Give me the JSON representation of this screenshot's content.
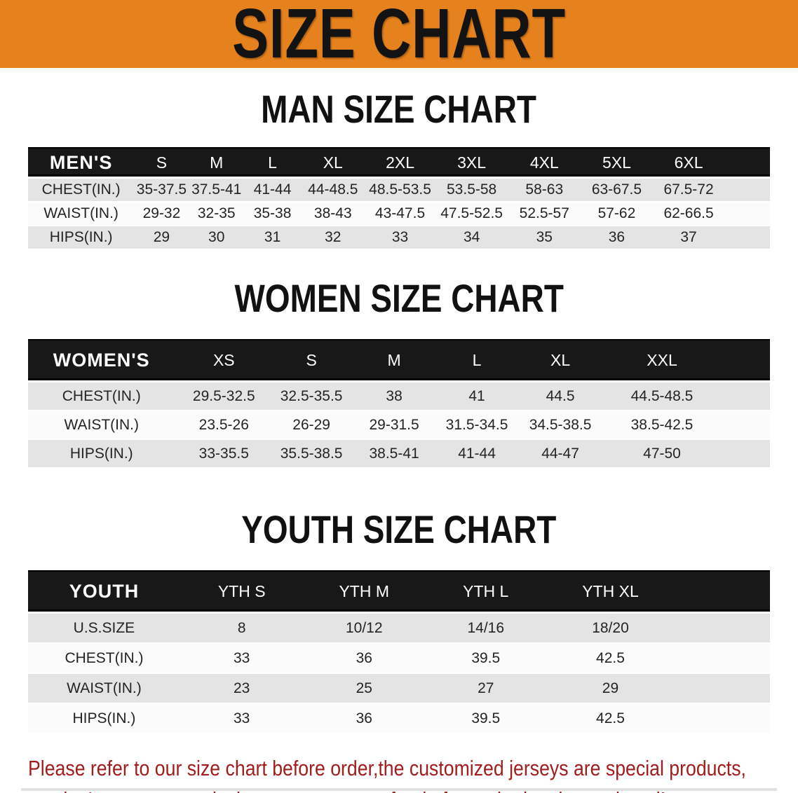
{
  "banner": {
    "title": "SIZE CHART",
    "bg_color": "#E5821E",
    "text_color": "#131313"
  },
  "table_colors": {
    "header_bg": "#181818",
    "header_text": "#FFFFFF",
    "row_alt_bg": "#E4E4E4",
    "row_bg": "#FBFBFB"
  },
  "sections": [
    {
      "heading": "MAN SIZE CHART",
      "group_label": "MEN'S",
      "columns": [
        "S",
        "M",
        "L",
        "XL",
        "2XL",
        "3XL",
        "4XL",
        "5XL",
        "6XL"
      ],
      "rows": [
        {
          "label": "CHEST(IN.)",
          "values": [
            "35-37.5",
            "37.5-41",
            "41-44",
            "44-48.5",
            "48.5-53.5",
            "53.5-58",
            "58-63",
            "63-67.5",
            "67.5-72"
          ]
        },
        {
          "label": "WAIST(IN.)",
          "values": [
            "29-32",
            "32-35",
            "35-38",
            "38-43",
            "43-47.5",
            "47.5-52.5",
            "52.5-57",
            "57-62",
            "62-66.5"
          ]
        },
        {
          "label": "HIPS(IN.)",
          "values": [
            "29",
            "30",
            "31",
            "32",
            "33",
            "34",
            "35",
            "36",
            "37"
          ]
        }
      ]
    },
    {
      "heading": "WOMEN SIZE CHART",
      "group_label": "WOMEN'S",
      "columns": [
        "XS",
        "S",
        "M",
        "L",
        "XL",
        "XXL"
      ],
      "rows": [
        {
          "label": "CHEST(IN.)",
          "values": [
            "29.5-32.5",
            "32.5-35.5",
            "38",
            "41",
            "44.5",
            "44.5-48.5"
          ]
        },
        {
          "label": "WAIST(IN.)",
          "values": [
            "23.5-26",
            "26-29",
            "29-31.5",
            "31.5-34.5",
            "34.5-38.5",
            "38.5-42.5"
          ]
        },
        {
          "label": "HIPS(IN.)",
          "values": [
            "33-35.5",
            "35.5-38.5",
            "38.5-41",
            "41-44",
            "44-47",
            "47-50"
          ]
        }
      ]
    },
    {
      "heading": "YOUTH SIZE CHART",
      "group_label": "YOUTH",
      "columns": [
        "YTH S",
        "YTH M",
        "YTH L",
        "YTH XL"
      ],
      "rows": [
        {
          "label": "U.S.SIZE",
          "values": [
            "8",
            "10/12",
            "14/16",
            "18/20"
          ]
        },
        {
          "label": "CHEST(IN.)",
          "values": [
            "33",
            "36",
            "39.5",
            "42.5"
          ]
        },
        {
          "label": "WAIST(IN.)",
          "values": [
            "23",
            "25",
            "27",
            "29"
          ]
        },
        {
          "label": "HIPS(IN.)",
          "values": [
            "33",
            "36",
            "39.5",
            "42.5"
          ]
        }
      ]
    }
  ],
  "disclaimer": {
    "line1": "Please refer to our size chart before order,the customized jerseys are special products,",
    "line2": "we don't accept cancel, change, teturn or refund after order has been placed!",
    "color": "#A21E1E"
  }
}
